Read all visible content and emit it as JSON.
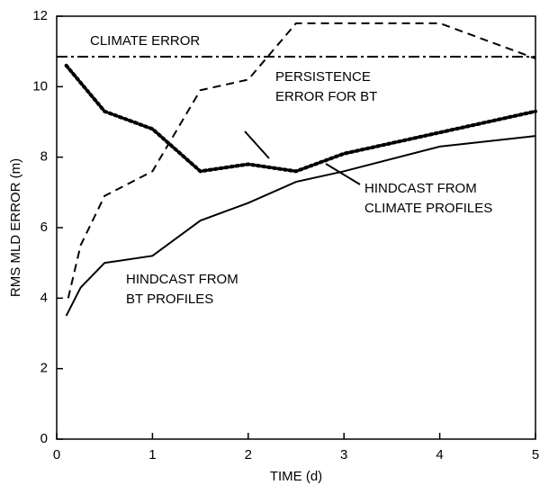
{
  "chart_data": {
    "type": "line",
    "xlabel": "TIME (d)",
    "ylabel": "RMS MLD ERROR (m)",
    "xlim": [
      0,
      5
    ],
    "ylim": [
      0,
      12
    ],
    "xticks": [
      0,
      1,
      2,
      3,
      4,
      5
    ],
    "yticks": [
      0,
      2,
      4,
      6,
      8,
      10,
      12
    ],
    "series": [
      {
        "color": "#000000",
        "style": "dashdot",
        "x": [
          0,
          5
        ],
        "values": [
          10.85,
          10.85
        ]
      },
      {
        "color": "#000000",
        "style": "dashed",
        "x": [
          0.12,
          0.25,
          0.5,
          1,
          1.5,
          2,
          2.5,
          3,
          4,
          5
        ],
        "values": [
          4.0,
          5.5,
          6.9,
          7.6,
          9.9,
          10.2,
          11.8,
          11.8,
          11.8,
          10.8
        ]
      },
      {
        "color": "#000000",
        "style": "dotted",
        "x": [
          0.1,
          0.5,
          1,
          1.5,
          2,
          2.5,
          3,
          4,
          5
        ],
        "values": [
          10.6,
          9.3,
          8.8,
          7.6,
          7.8,
          7.6,
          8.1,
          8.7,
          9.3
        ]
      },
      {
        "color": "#000000",
        "style": "solid",
        "x": [
          0.1,
          0.25,
          0.5,
          1,
          1.5,
          2,
          2.5,
          3,
          4,
          5
        ],
        "values": [
          3.5,
          4.3,
          5.0,
          5.2,
          6.2,
          6.7,
          7.3,
          7.6,
          8.3,
          8.6
        ]
      }
    ],
    "annotations": [
      {
        "lines": [
          "CLIMATE ERROR"
        ]
      },
      {
        "lines": [
          "PERSISTENCE",
          "ERROR FOR BT"
        ]
      },
      {
        "lines": [
          "HINDCAST FROM",
          "CLIMATE PROFILES"
        ]
      },
      {
        "lines": [
          "HINDCAST FROM",
          "BT PROFILES"
        ]
      }
    ]
  }
}
